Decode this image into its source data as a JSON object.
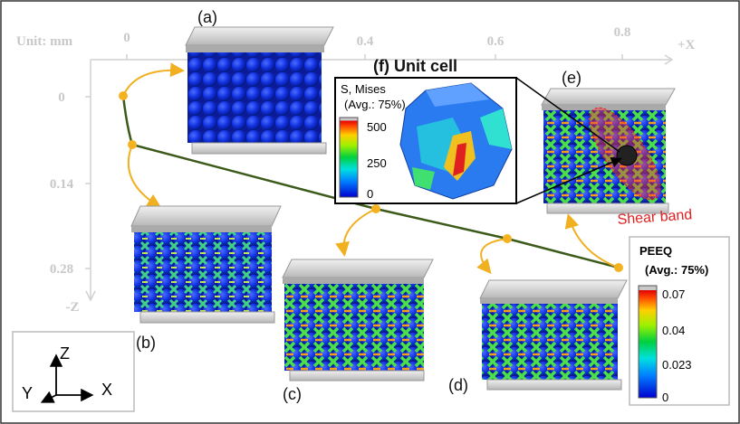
{
  "axes": {
    "unit": "Unit: mm",
    "x_ticks": [
      "0",
      "0.4",
      "0.6",
      "0.8"
    ],
    "x_label": "+X",
    "z_ticks": [
      "0",
      "0.14",
      "0.28"
    ],
    "z_label": "-Z"
  },
  "panels": [
    "(a)",
    "(b)",
    "(c)",
    "(d)",
    "(e)"
  ],
  "unit_cell": {
    "title": "(f) Unit cell",
    "legend_title": "S, Mises",
    "legend_subtitle": "(Avg.: 75%)",
    "legend_ticks": [
      "500",
      "250",
      "0"
    ]
  },
  "shear_band": "Shear band",
  "peeq_legend": {
    "title": "PEEQ",
    "subtitle": "(Avg.: 75%)",
    "ticks": [
      "0.07",
      "0.04",
      "0.023",
      "0"
    ]
  },
  "triad": {
    "z": "Z",
    "y": "Y",
    "x": "X"
  }
}
